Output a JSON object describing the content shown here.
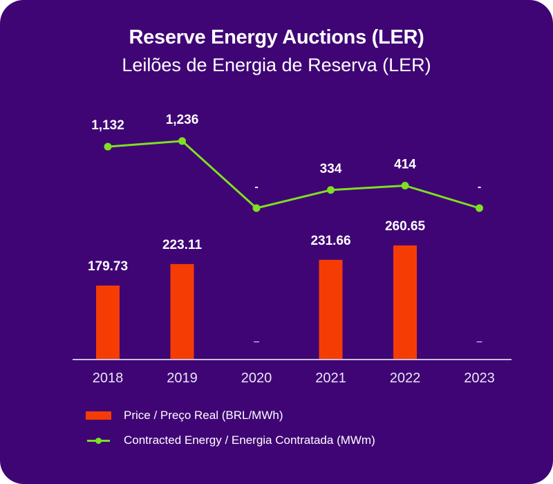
{
  "colors": {
    "background": "#3f0575",
    "bar": "#f53c05",
    "line": "#7ee021",
    "text": "#ffffff",
    "axis": "#c9c0dc"
  },
  "chart_data": {
    "type": "bar+line",
    "title": "Reserve Energy Auctions (LER)",
    "subtitle": "Leilões de Energia de Reserva (LER)",
    "categories": [
      "2018",
      "2019",
      "2020",
      "2021",
      "2022",
      "2023"
    ],
    "series": [
      {
        "name": "Price / Preço Real (BRL/MWh)",
        "type": "bar",
        "values": [
          179.73,
          223.11,
          null,
          231.66,
          260.65,
          null
        ],
        "labels": [
          "179.73",
          "223.11",
          "-",
          "231.66",
          "260.65",
          "-"
        ]
      },
      {
        "name": "Contracted Energy / Energia Contratada (MWm)",
        "type": "line",
        "values": [
          1132,
          1236,
          null,
          334,
          414,
          null
        ],
        "labels": [
          "1,132",
          "1,236",
          "-",
          "334",
          "414",
          "-"
        ]
      }
    ],
    "bar_ylim": [
      30.5,
      300
    ],
    "line_ylim": [
      0,
      1400
    ],
    "xlabel": "",
    "ylabel": "",
    "grid": false,
    "legend_position": "bottom-left"
  }
}
